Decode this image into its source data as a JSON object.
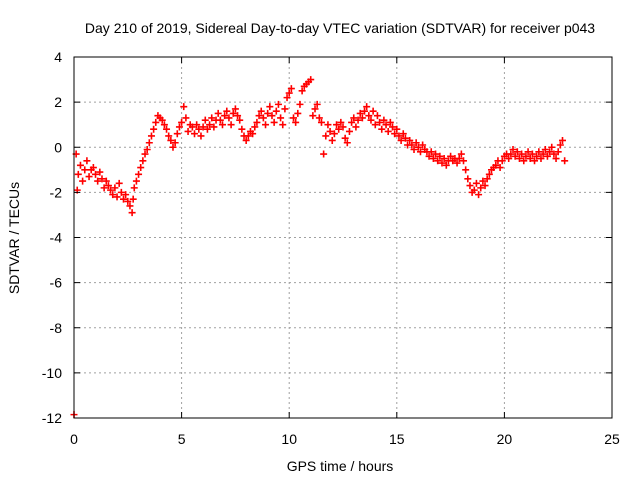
{
  "chart_data": {
    "type": "scatter",
    "title": "Day 210 of 2019, Sidereal Day-to-day VTEC variation (SDTVAR) for receiver p043",
    "xlabel": "GPS time / hours",
    "ylabel": "SDTVAR / TECUs",
    "xlim": [
      0,
      25
    ],
    "ylim": [
      -12,
      4
    ],
    "x_ticks": [
      0,
      5,
      10,
      15,
      20,
      25
    ],
    "y_ticks": [
      -12,
      -10,
      -8,
      -6,
      -4,
      -2,
      0,
      2,
      4
    ],
    "x_tick_labels": [
      "0",
      "5",
      "10",
      "15",
      "20",
      "25"
    ],
    "y_tick_labels": [
      "-12",
      "-10",
      "-8",
      "-6",
      "-4",
      "-2",
      "0",
      "2",
      "4"
    ],
    "grid": true,
    "marker": "+",
    "series": [
      {
        "name": "SDTVAR",
        "color": "#ff0000",
        "points": [
          [
            0.0,
            -11.85
          ],
          [
            0.1,
            -0.3
          ],
          [
            0.15,
            -1.9
          ],
          [
            0.2,
            -1.2
          ],
          [
            0.3,
            -0.8
          ],
          [
            0.4,
            -1.5
          ],
          [
            0.5,
            -1.0
          ],
          [
            0.6,
            -0.6
          ],
          [
            0.7,
            -1.3
          ],
          [
            0.8,
            -1.0
          ],
          [
            0.9,
            -0.9
          ],
          [
            1.0,
            -1.2
          ],
          [
            1.1,
            -1.5
          ],
          [
            1.2,
            -1.1
          ],
          [
            1.3,
            -1.4
          ],
          [
            1.4,
            -1.8
          ],
          [
            1.5,
            -1.5
          ],
          [
            1.6,
            -1.7
          ],
          [
            1.7,
            -1.9
          ],
          [
            1.8,
            -2.1
          ],
          [
            1.9,
            -1.8
          ],
          [
            2.0,
            -2.2
          ],
          [
            2.1,
            -1.6
          ],
          [
            2.2,
            -2.0
          ],
          [
            2.3,
            -2.3
          ],
          [
            2.4,
            -2.1
          ],
          [
            2.5,
            -2.4
          ],
          [
            2.6,
            -2.6
          ],
          [
            2.7,
            -2.9
          ],
          [
            2.75,
            -2.3
          ],
          [
            2.8,
            -1.8
          ],
          [
            2.9,
            -1.5
          ],
          [
            3.0,
            -1.2
          ],
          [
            3.1,
            -0.9
          ],
          [
            3.2,
            -0.6
          ],
          [
            3.3,
            -0.3
          ],
          [
            3.4,
            -0.1
          ],
          [
            3.5,
            0.2
          ],
          [
            3.6,
            0.5
          ],
          [
            3.7,
            0.8
          ],
          [
            3.8,
            1.1
          ],
          [
            3.9,
            1.4
          ],
          [
            4.0,
            1.3
          ],
          [
            4.1,
            1.2
          ],
          [
            4.2,
            1.0
          ],
          [
            4.3,
            0.8
          ],
          [
            4.4,
            0.5
          ],
          [
            4.5,
            0.3
          ],
          [
            4.6,
            0.0
          ],
          [
            4.7,
            0.2
          ],
          [
            4.8,
            0.6
          ],
          [
            4.9,
            0.9
          ],
          [
            5.0,
            1.1
          ],
          [
            5.1,
            1.8
          ],
          [
            5.2,
            1.3
          ],
          [
            5.3,
            0.7
          ],
          [
            5.4,
            1.0
          ],
          [
            5.5,
            0.9
          ],
          [
            5.6,
            0.6
          ],
          [
            5.7,
            1.0
          ],
          [
            5.8,
            0.8
          ],
          [
            5.9,
            0.5
          ],
          [
            6.0,
            0.9
          ],
          [
            6.1,
            1.2
          ],
          [
            6.2,
            0.8
          ],
          [
            6.3,
            1.0
          ],
          [
            6.4,
            1.3
          ],
          [
            6.5,
            0.9
          ],
          [
            6.6,
            1.2
          ],
          [
            6.7,
            1.5
          ],
          [
            6.8,
            1.2
          ],
          [
            6.9,
            1.0
          ],
          [
            7.0,
            1.4
          ],
          [
            7.1,
            1.6
          ],
          [
            7.2,
            1.3
          ],
          [
            7.3,
            1.0
          ],
          [
            7.4,
            1.5
          ],
          [
            7.5,
            1.7
          ],
          [
            7.6,
            1.4
          ],
          [
            7.7,
            1.2
          ],
          [
            7.8,
            0.8
          ],
          [
            7.9,
            0.5
          ],
          [
            8.0,
            0.3
          ],
          [
            8.1,
            0.5
          ],
          [
            8.2,
            0.7
          ],
          [
            8.3,
            0.6
          ],
          [
            8.4,
            0.9
          ],
          [
            8.5,
            1.1
          ],
          [
            8.6,
            1.4
          ],
          [
            8.7,
            1.6
          ],
          [
            8.8,
            1.3
          ],
          [
            8.9,
            1.0
          ],
          [
            9.0,
            1.5
          ],
          [
            9.1,
            1.8
          ],
          [
            9.2,
            1.4
          ],
          [
            9.3,
            1.1
          ],
          [
            9.4,
            1.6
          ],
          [
            9.5,
            1.9
          ],
          [
            9.6,
            1.3
          ],
          [
            9.7,
            1.0
          ],
          [
            9.8,
            1.7
          ],
          [
            9.9,
            2.2
          ],
          [
            10.0,
            2.4
          ],
          [
            10.1,
            2.6
          ],
          [
            10.2,
            1.3
          ],
          [
            10.3,
            1.1
          ],
          [
            10.4,
            1.5
          ],
          [
            10.5,
            1.9
          ],
          [
            10.6,
            2.5
          ],
          [
            10.7,
            2.7
          ],
          [
            10.8,
            2.8
          ],
          [
            10.9,
            2.9
          ],
          [
            11.0,
            3.0
          ],
          [
            11.1,
            1.4
          ],
          [
            11.2,
            1.7
          ],
          [
            11.3,
            1.9
          ],
          [
            11.4,
            1.3
          ],
          [
            11.5,
            1.1
          ],
          [
            11.6,
            -0.3
          ],
          [
            11.7,
            0.5
          ],
          [
            11.8,
            1.0
          ],
          [
            11.9,
            0.7
          ],
          [
            12.0,
            0.3
          ],
          [
            12.1,
            0.6
          ],
          [
            12.2,
            1.0
          ],
          [
            12.3,
            0.8
          ],
          [
            12.4,
            1.1
          ],
          [
            12.5,
            0.9
          ],
          [
            12.6,
            0.4
          ],
          [
            12.7,
            0.2
          ],
          [
            12.8,
            0.7
          ],
          [
            12.9,
            1.1
          ],
          [
            13.0,
            1.3
          ],
          [
            13.1,
            0.9
          ],
          [
            13.2,
            1.2
          ],
          [
            13.3,
            1.5
          ],
          [
            13.4,
            1.3
          ],
          [
            13.5,
            1.6
          ],
          [
            13.6,
            1.8
          ],
          [
            13.7,
            1.4
          ],
          [
            13.8,
            1.2
          ],
          [
            13.9,
            1.6
          ],
          [
            14.0,
            1.0
          ],
          [
            14.1,
            1.4
          ],
          [
            14.2,
            1.1
          ],
          [
            14.3,
            0.8
          ],
          [
            14.4,
            1.2
          ],
          [
            14.5,
            1.0
          ],
          [
            14.6,
            0.7
          ],
          [
            14.7,
            1.1
          ],
          [
            14.8,
            0.9
          ],
          [
            14.9,
            0.6
          ],
          [
            15.0,
            0.8
          ],
          [
            15.1,
            0.5
          ],
          [
            15.2,
            0.3
          ],
          [
            15.3,
            0.6
          ],
          [
            15.4,
            0.4
          ],
          [
            15.5,
            0.1
          ],
          [
            15.6,
            0.3
          ],
          [
            15.7,
            0.1
          ],
          [
            15.8,
            -0.1
          ],
          [
            15.9,
            0.2
          ],
          [
            16.0,
            0.0
          ],
          [
            16.1,
            -0.2
          ],
          [
            16.2,
            0.1
          ],
          [
            16.3,
            -0.1
          ],
          [
            16.4,
            -0.2
          ],
          [
            16.5,
            -0.4
          ],
          [
            16.6,
            -0.2
          ],
          [
            16.7,
            -0.5
          ],
          [
            16.8,
            -0.3
          ],
          [
            16.9,
            -0.6
          ],
          [
            17.0,
            -0.4
          ],
          [
            17.1,
            -0.7
          ],
          [
            17.2,
            -0.5
          ],
          [
            17.3,
            -0.8
          ],
          [
            17.4,
            -0.6
          ],
          [
            17.5,
            -0.4
          ],
          [
            17.6,
            -0.6
          ],
          [
            17.7,
            -0.5
          ],
          [
            17.8,
            -0.7
          ],
          [
            17.9,
            -0.5
          ],
          [
            18.0,
            -0.3
          ],
          [
            18.1,
            -0.6
          ],
          [
            18.2,
            -1.0
          ],
          [
            18.3,
            -1.4
          ],
          [
            18.4,
            -1.7
          ],
          [
            18.5,
            -2.0
          ],
          [
            18.6,
            -1.9
          ],
          [
            18.7,
            -1.6
          ],
          [
            18.8,
            -2.1
          ],
          [
            18.9,
            -1.8
          ],
          [
            19.0,
            -1.5
          ],
          [
            19.1,
            -1.7
          ],
          [
            19.2,
            -1.4
          ],
          [
            19.3,
            -1.2
          ],
          [
            19.4,
            -1.0
          ],
          [
            19.5,
            -0.9
          ],
          [
            19.6,
            -0.8
          ],
          [
            19.7,
            -0.6
          ],
          [
            19.8,
            -0.9
          ],
          [
            19.9,
            -0.6
          ],
          [
            20.0,
            -0.4
          ],
          [
            20.1,
            -0.3
          ],
          [
            20.2,
            -0.5
          ],
          [
            20.3,
            -0.3
          ],
          [
            20.4,
            -0.1
          ],
          [
            20.5,
            -0.4
          ],
          [
            20.6,
            -0.2
          ],
          [
            20.7,
            -0.5
          ],
          [
            20.8,
            -0.3
          ],
          [
            20.9,
            -0.6
          ],
          [
            21.0,
            -0.4
          ],
          [
            21.1,
            -0.2
          ],
          [
            21.2,
            -0.5
          ],
          [
            21.3,
            -0.3
          ],
          [
            21.4,
            -0.6
          ],
          [
            21.5,
            -0.4
          ],
          [
            21.6,
            -0.2
          ],
          [
            21.7,
            -0.5
          ],
          [
            21.8,
            -0.3
          ],
          [
            21.9,
            -0.1
          ],
          [
            22.0,
            -0.4
          ],
          [
            22.1,
            -0.2
          ],
          [
            22.2,
            0.0
          ],
          [
            22.3,
            -0.3
          ],
          [
            22.4,
            -0.5
          ],
          [
            22.5,
            -0.2
          ],
          [
            22.6,
            0.1
          ],
          [
            22.7,
            0.3
          ],
          [
            22.8,
            -0.6
          ]
        ]
      }
    ]
  }
}
